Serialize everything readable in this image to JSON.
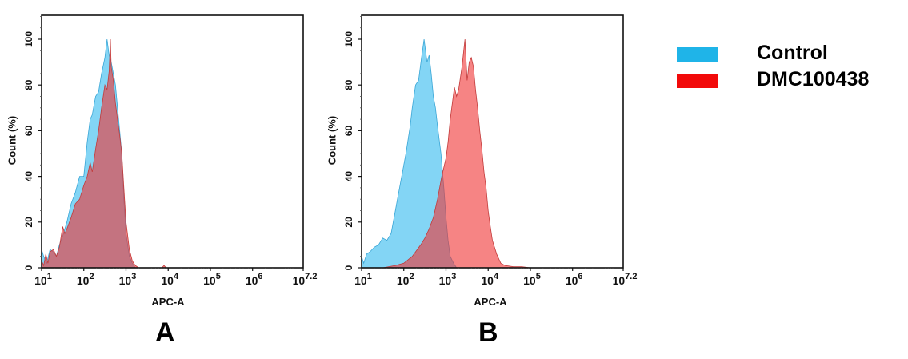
{
  "legend": {
    "items": [
      {
        "label": "Control",
        "color": "#1fb4e8"
      },
      {
        "label": "DMC100438",
        "color": "#f20a0a"
      }
    ]
  },
  "panels": [
    {
      "letter": "A",
      "xlabel": "APC-A",
      "ylabel": "Count (%)"
    },
    {
      "letter": "B",
      "xlabel": "APC-A",
      "ylabel": "Count (%)"
    }
  ],
  "axes": {
    "y_ticks": [
      "0",
      "20",
      "40",
      "60",
      "80",
      "100"
    ],
    "x_ticks": [
      {
        "base": "10",
        "exp": "1"
      },
      {
        "base": "10",
        "exp": "2"
      },
      {
        "base": "10",
        "exp": "3"
      },
      {
        "base": "10",
        "exp": "4"
      },
      {
        "base": "10",
        "exp": "5"
      },
      {
        "base": "10",
        "exp": "6"
      },
      {
        "base": "10",
        "exp": "7.2"
      }
    ]
  },
  "chart_data": [
    {
      "type": "area",
      "title": "A",
      "xlabel": "APC-A",
      "ylabel": "Count (%)",
      "xscale": "log",
      "xlim_log10": [
        1,
        7.2
      ],
      "ylim": [
        0,
        110
      ],
      "x_tick_labels": [
        "10^1",
        "10^2",
        "10^3",
        "10^4",
        "10^5",
        "10^6",
        "10^7.2"
      ],
      "y_tick_labels": [
        "0",
        "20",
        "40",
        "60",
        "80",
        "100"
      ],
      "legend": [
        "Control",
        "DMC100438"
      ],
      "series": [
        {
          "name": "Control",
          "x_log10": [
            1.0,
            1.05,
            1.12,
            1.2,
            1.28,
            1.35,
            1.42,
            1.5,
            1.6,
            1.7,
            1.8,
            1.9,
            2.0,
            2.08,
            2.15,
            2.2,
            2.28,
            2.35,
            2.42,
            2.5,
            2.55,
            2.6,
            2.65,
            2.7,
            2.75,
            2.8,
            2.85,
            2.9,
            2.95,
            3.0,
            3.08,
            3.15,
            3.22,
            3.3
          ],
          "values": [
            8,
            5,
            2,
            8,
            7,
            5,
            10,
            14,
            20,
            28,
            33,
            40,
            40,
            55,
            65,
            67,
            75,
            77,
            85,
            92,
            100,
            93,
            90,
            85,
            80,
            70,
            60,
            50,
            30,
            15,
            5,
            2,
            0,
            0
          ]
        },
        {
          "name": "DMC100438",
          "x_log10": [
            1.0,
            1.05,
            1.1,
            1.15,
            1.2,
            1.28,
            1.35,
            1.42,
            1.5,
            1.55,
            1.6,
            1.7,
            1.8,
            1.9,
            2.0,
            2.08,
            2.15,
            2.2,
            2.28,
            2.35,
            2.42,
            2.5,
            2.55,
            2.6,
            2.63,
            2.65,
            2.7,
            2.75,
            2.8,
            2.85,
            2.9,
            2.95,
            3.0,
            3.08,
            3.15,
            3.22,
            3.3,
            3.85,
            3.9,
            3.95
          ],
          "values": [
            3,
            1,
            6,
            2,
            7,
            8,
            5,
            9,
            18,
            15,
            17,
            22,
            28,
            30,
            36,
            40,
            46,
            42,
            52,
            60,
            70,
            80,
            78,
            86,
            100,
            88,
            82,
            72,
            65,
            58,
            50,
            35,
            20,
            8,
            3,
            1,
            0,
            0,
            1,
            0
          ]
        }
      ]
    },
    {
      "type": "area",
      "title": "B",
      "xlabel": "APC-A",
      "ylabel": "Count (%)",
      "xscale": "log",
      "xlim_log10": [
        1,
        7.2
      ],
      "ylim": [
        0,
        110
      ],
      "x_tick_labels": [
        "10^1",
        "10^2",
        "10^3",
        "10^4",
        "10^5",
        "10^6",
        "10^7.2"
      ],
      "y_tick_labels": [
        "0",
        "20",
        "40",
        "60",
        "80",
        "100"
      ],
      "legend": [
        "Control",
        "DMC100438"
      ],
      "series": [
        {
          "name": "Control",
          "x_log10": [
            1.0,
            1.05,
            1.12,
            1.2,
            1.3,
            1.4,
            1.5,
            1.6,
            1.7,
            1.8,
            1.85,
            1.95,
            2.05,
            2.15,
            2.2,
            2.28,
            2.35,
            2.42,
            2.48,
            2.55,
            2.6,
            2.65,
            2.7,
            2.75,
            2.8,
            2.88,
            2.95,
            3.0,
            3.05,
            3.1,
            3.18,
            3.25,
            3.3
          ],
          "values": [
            5,
            2,
            6,
            7,
            9,
            10,
            13,
            12,
            15,
            25,
            30,
            40,
            50,
            62,
            70,
            80,
            82,
            92,
            100,
            90,
            93,
            85,
            75,
            70,
            62,
            50,
            35,
            22,
            12,
            5,
            2,
            0,
            0
          ]
        },
        {
          "name": "DMC100438",
          "x_log10": [
            1.0,
            1.5,
            1.8,
            2.0,
            2.2,
            2.4,
            2.5,
            2.6,
            2.7,
            2.8,
            2.9,
            3.0,
            3.05,
            3.1,
            3.15,
            3.2,
            3.25,
            3.3,
            3.38,
            3.45,
            3.5,
            3.55,
            3.6,
            3.65,
            3.7,
            3.75,
            3.8,
            3.85,
            3.9,
            3.95,
            4.0,
            4.05,
            4.1,
            4.2,
            4.3,
            4.4,
            4.6,
            4.8,
            5.0
          ],
          "values": [
            0,
            0,
            1,
            2,
            5,
            10,
            13,
            17,
            22,
            30,
            40,
            48,
            55,
            65,
            72,
            79,
            75,
            78,
            88,
            100,
            82,
            90,
            92,
            88,
            78,
            70,
            60,
            52,
            42,
            35,
            25,
            18,
            12,
            6,
            2,
            1,
            0.5,
            0.5,
            0
          ]
        }
      ]
    }
  ]
}
